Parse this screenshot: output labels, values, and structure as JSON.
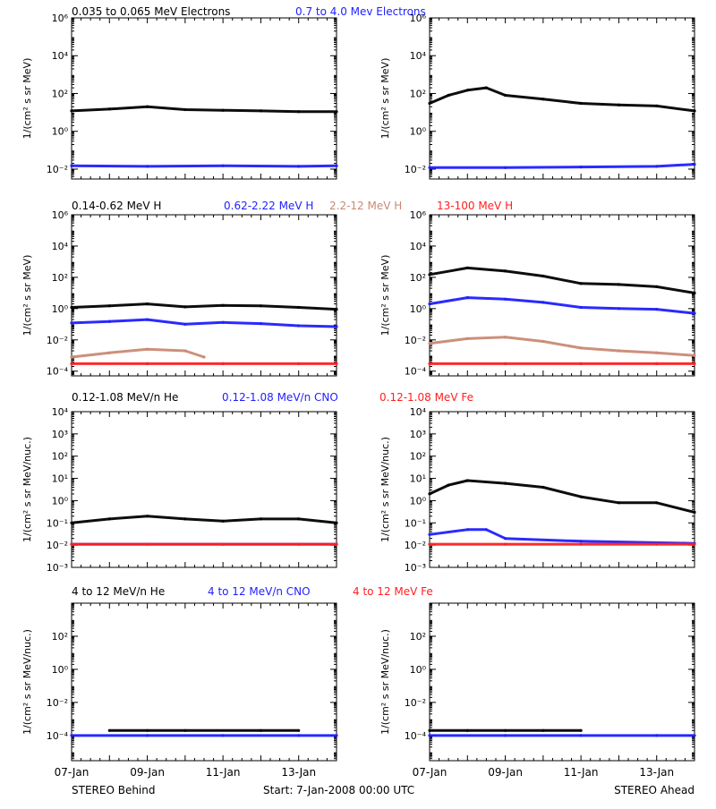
{
  "colors": {
    "black": "#000000",
    "blue": "#1f1fff",
    "tan": "#c98a74",
    "red": "#ff1f1f"
  },
  "footer": {
    "left": "STEREO Behind",
    "center": "Start:  7-Jan-2008 00:00 UTC",
    "right": "STEREO Ahead"
  },
  "x_axis": {
    "start_date": "2008-01-07",
    "end_date": "2008-01-14",
    "tick_labels": [
      "07-Jan",
      "09-Jan",
      "11-Jan",
      "13-Jan"
    ]
  },
  "chart_data": [
    {
      "type": "scatter",
      "row": "electrons",
      "legend": [
        {
          "text": "0.035 to 0.065 MeV Electrons",
          "color": "#000000"
        },
        {
          "text": "0.7 to 4.0 Mev Electrons",
          "color": "#1f1fff"
        }
      ],
      "ylabel": "1/(cm² s sr MeV)",
      "ylim": [
        0.003,
        1000000
      ],
      "yscale": "log",
      "yticks": [
        {
          "v": 1000000,
          "t": "10⁶"
        },
        {
          "v": 10000,
          "t": "10⁴"
        },
        {
          "v": 100,
          "t": "10²"
        },
        {
          "v": 1,
          "t": "10⁰"
        },
        {
          "v": 0.01,
          "t": "10⁻²"
        }
      ],
      "panels": [
        {
          "name": "STEREO Behind",
          "series": [
            {
              "name": "0.035 to 0.065 MeV Electrons",
              "color": "#000000",
              "x": [
                "2008-01-07",
                "2008-01-08",
                "2008-01-09",
                "2008-01-10",
                "2008-01-11",
                "2008-01-12",
                "2008-01-13",
                "2008-01-14"
              ],
              "y": [
                12,
                15,
                20,
                14,
                13,
                12,
                11,
                11
              ]
            },
            {
              "name": "0.7 to 4.0 Mev Electrons",
              "color": "#1f1fff",
              "x": [
                "2008-01-07",
                "2008-01-09",
                "2008-01-11",
                "2008-01-13",
                "2008-01-14"
              ],
              "y": [
                0.015,
                0.014,
                0.015,
                0.014,
                0.015
              ]
            }
          ]
        },
        {
          "name": "STEREO Ahead",
          "series": [
            {
              "name": "0.035 to 0.065 MeV Electrons",
              "color": "#000000",
              "x": [
                "2008-01-07",
                "2008-01-07 12:00",
                "2008-01-08",
                "2008-01-08 12:00",
                "2008-01-09",
                "2008-01-10",
                "2008-01-11",
                "2008-01-12",
                "2008-01-13",
                "2008-01-14"
              ],
              "y": [
                30,
                80,
                150,
                200,
                80,
                50,
                30,
                25,
                22,
                12
              ]
            },
            {
              "name": "0.7 to 4.0 Mev Electrons",
              "color": "#1f1fff",
              "x": [
                "2008-01-07",
                "2008-01-09",
                "2008-01-11",
                "2008-01-13",
                "2008-01-14"
              ],
              "y": [
                0.012,
                0.012,
                0.013,
                0.014,
                0.018
              ]
            }
          ]
        }
      ]
    },
    {
      "type": "scatter",
      "row": "protons",
      "legend": [
        {
          "text": "0.14-0.62 MeV H",
          "color": "#000000"
        },
        {
          "text": "0.62-2.22 MeV H",
          "color": "#1f1fff"
        },
        {
          "text": "2.2-12 MeV H",
          "color": "#c98a74"
        },
        {
          "text": "13-100 MeV H",
          "color": "#ff1f1f"
        }
      ],
      "ylabel": "1/(cm² s sr MeV)",
      "ylim": [
        5e-05,
        1000000
      ],
      "yscale": "log",
      "yticks": [
        {
          "v": 1000000,
          "t": "10⁶"
        },
        {
          "v": 10000,
          "t": "10⁴"
        },
        {
          "v": 100,
          "t": "10²"
        },
        {
          "v": 1,
          "t": "10⁰"
        },
        {
          "v": 0.01,
          "t": "10⁻²"
        },
        {
          "v": 0.0001,
          "t": "10⁻⁴"
        }
      ],
      "panels": [
        {
          "name": "STEREO Behind",
          "series": [
            {
              "name": "0.14-0.62 MeV H",
              "color": "#000000",
              "x": [
                "2008-01-07",
                "2008-01-08",
                "2008-01-09",
                "2008-01-10",
                "2008-01-11",
                "2008-01-12",
                "2008-01-13",
                "2008-01-14"
              ],
              "y": [
                1.2,
                1.5,
                2.0,
                1.3,
                1.6,
                1.5,
                1.2,
                0.9
              ]
            },
            {
              "name": "0.62-2.22 MeV H",
              "color": "#1f1fff",
              "x": [
                "2008-01-07",
                "2008-01-08",
                "2008-01-09",
                "2008-01-10",
                "2008-01-11",
                "2008-01-12",
                "2008-01-13",
                "2008-01-14"
              ],
              "y": [
                0.12,
                0.15,
                0.2,
                0.1,
                0.13,
                0.11,
                0.08,
                0.07
              ]
            },
            {
              "name": "2.2-12 MeV H",
              "color": "#c98a74",
              "x": [
                "2008-01-07",
                "2008-01-08",
                "2008-01-09",
                "2008-01-10",
                "2008-01-10 12:00"
              ],
              "y": [
                0.0008,
                0.0015,
                0.0025,
                0.002,
                0.0008
              ]
            },
            {
              "name": "13-100 MeV H",
              "color": "#ff1f1f",
              "x": [
                "2008-01-07",
                "2008-01-09",
                "2008-01-11",
                "2008-01-13",
                "2008-01-14"
              ],
              "y": [
                0.0003,
                0.0003,
                0.0003,
                0.0003,
                0.0003
              ]
            }
          ]
        },
        {
          "name": "STEREO Ahead",
          "series": [
            {
              "name": "0.14-0.62 MeV H",
              "color": "#000000",
              "x": [
                "2008-01-07",
                "2008-01-08",
                "2008-01-09",
                "2008-01-10",
                "2008-01-11",
                "2008-01-12",
                "2008-01-13",
                "2008-01-14"
              ],
              "y": [
                150,
                400,
                250,
                120,
                40,
                35,
                25,
                10
              ]
            },
            {
              "name": "0.62-2.22 MeV H",
              "color": "#1f1fff",
              "x": [
                "2008-01-07",
                "2008-01-08",
                "2008-01-09",
                "2008-01-10",
                "2008-01-11",
                "2008-01-12",
                "2008-01-13",
                "2008-01-14"
              ],
              "y": [
                2,
                5,
                4,
                2.5,
                1.2,
                1,
                0.9,
                0.5
              ]
            },
            {
              "name": "2.2-12 MeV H",
              "color": "#c98a74",
              "x": [
                "2008-01-07",
                "2008-01-08",
                "2008-01-09",
                "2008-01-10",
                "2008-01-11",
                "2008-01-12",
                "2008-01-13",
                "2008-01-14"
              ],
              "y": [
                0.006,
                0.012,
                0.015,
                0.008,
                0.003,
                0.002,
                0.0015,
                0.001
              ]
            },
            {
              "name": "13-100 MeV H",
              "color": "#ff1f1f",
              "x": [
                "2008-01-07",
                "2008-01-09",
                "2008-01-11",
                "2008-01-13",
                "2008-01-14"
              ],
              "y": [
                0.0003,
                0.0003,
                0.0003,
                0.0003,
                0.0003
              ]
            }
          ]
        }
      ]
    },
    {
      "type": "scatter",
      "row": "heavy-low",
      "legend": [
        {
          "text": "0.12-1.08 MeV/n He",
          "color": "#000000"
        },
        {
          "text": "0.12-1.08 MeV/n CNO",
          "color": "#1f1fff"
        },
        {
          "text": "0.12-1.08 MeV Fe",
          "color": "#ff1f1f"
        }
      ],
      "ylabel": "1/(cm² s sr MeV/nuc.)",
      "ylim": [
        0.001,
        10000
      ],
      "yscale": "log",
      "yticks": [
        {
          "v": 10000,
          "t": "10⁴"
        },
        {
          "v": 1000,
          "t": "10³"
        },
        {
          "v": 100,
          "t": "10²"
        },
        {
          "v": 10,
          "t": "10¹"
        },
        {
          "v": 1,
          "t": "10⁰"
        },
        {
          "v": 0.1,
          "t": "10⁻¹"
        },
        {
          "v": 0.01,
          "t": "10⁻²"
        },
        {
          "v": 0.001,
          "t": "10⁻³"
        }
      ],
      "panels": [
        {
          "name": "STEREO Behind",
          "series": [
            {
              "name": "0.12-1.08 MeV/n He",
              "color": "#000000",
              "x": [
                "2008-01-07",
                "2008-01-08",
                "2008-01-09",
                "2008-01-10",
                "2008-01-11",
                "2008-01-12",
                "2008-01-13",
                "2008-01-14"
              ],
              "y": [
                0.1,
                0.15,
                0.2,
                0.15,
                0.12,
                0.15,
                0.15,
                0.1
              ]
            },
            {
              "name": "0.12-1.08 MeV/n CNO",
              "color": "#1f1fff",
              "x": [
                "2008-01-07",
                "2008-01-09",
                "2008-01-11",
                "2008-01-13",
                "2008-01-14"
              ],
              "y": [
                0.011,
                0.011,
                0.011,
                0.011,
                0.011
              ]
            },
            {
              "name": "0.12-1.08 MeV Fe",
              "color": "#ff1f1f",
              "x": [
                "2008-01-07",
                "2008-01-09",
                "2008-01-11",
                "2008-01-13",
                "2008-01-14"
              ],
              "y": [
                0.011,
                0.011,
                0.011,
                0.011,
                0.011
              ]
            }
          ]
        },
        {
          "name": "STEREO Ahead",
          "series": [
            {
              "name": "0.12-1.08 MeV/n He",
              "color": "#000000",
              "x": [
                "2008-01-07",
                "2008-01-07 12:00",
                "2008-01-08",
                "2008-01-09",
                "2008-01-10",
                "2008-01-11",
                "2008-01-12",
                "2008-01-13",
                "2008-01-14"
              ],
              "y": [
                2,
                5,
                8,
                6,
                4,
                1.5,
                0.8,
                0.8,
                0.3
              ]
            },
            {
              "name": "0.12-1.08 MeV/n CNO",
              "color": "#1f1fff",
              "x": [
                "2008-01-07",
                "2008-01-08",
                "2008-01-08 12:00",
                "2008-01-09",
                "2008-01-11",
                "2008-01-14"
              ],
              "y": [
                0.03,
                0.05,
                0.05,
                0.02,
                0.015,
                0.012
              ]
            },
            {
              "name": "0.12-1.08 MeV Fe",
              "color": "#ff1f1f",
              "x": [
                "2008-01-07",
                "2008-01-09",
                "2008-01-11",
                "2008-01-13",
                "2008-01-14"
              ],
              "y": [
                0.011,
                0.011,
                0.011,
                0.011,
                0.011
              ]
            }
          ]
        }
      ]
    },
    {
      "type": "scatter",
      "row": "heavy-high",
      "legend": [
        {
          "text": "4 to 12 MeV/n He",
          "color": "#000000"
        },
        {
          "text": "4 to 12 MeV/n CNO",
          "color": "#1f1fff"
        },
        {
          "text": "4 to 12 MeV Fe",
          "color": "#ff1f1f"
        }
      ],
      "ylabel": "1/(cm² s sr MeV/nuc.)",
      "ylim": [
        3e-06,
        10000
      ],
      "yscale": "log",
      "yticks": [
        {
          "v": 100,
          "t": "10²"
        },
        {
          "v": 1,
          "t": "10⁰"
        },
        {
          "v": 0.01,
          "t": "10⁻²"
        },
        {
          "v": 0.0001,
          "t": "10⁻⁴"
        }
      ],
      "panels": [
        {
          "name": "STEREO Behind",
          "series": [
            {
              "name": "4 to 12 MeV/n He",
              "color": "#000000",
              "x": [
                "2008-01-08",
                "2008-01-09",
                "2008-01-10",
                "2008-01-12",
                "2008-01-13"
              ],
              "y": [
                0.0002,
                0.0002,
                0.0002,
                0.0002,
                0.0002
              ]
            },
            {
              "name": "4 to 12 MeV/n CNO",
              "color": "#1f1fff",
              "x": [
                "2008-01-07",
                "2008-01-09",
                "2008-01-11",
                "2008-01-13",
                "2008-01-14"
              ],
              "y": [
                0.0001,
                0.0001,
                0.0001,
                0.0001,
                0.0001
              ]
            }
          ]
        },
        {
          "name": "STEREO Ahead",
          "series": [
            {
              "name": "4 to 12 MeV/n He",
              "color": "#000000",
              "x": [
                "2008-01-07",
                "2008-01-08",
                "2008-01-09",
                "2008-01-10",
                "2008-01-11"
              ],
              "y": [
                0.0002,
                0.0002,
                0.0002,
                0.0002,
                0.0002
              ]
            },
            {
              "name": "4 to 12 MeV/n CNO",
              "color": "#1f1fff",
              "x": [
                "2008-01-07",
                "2008-01-09",
                "2008-01-11",
                "2008-01-13",
                "2008-01-14"
              ],
              "y": [
                0.0001,
                0.0001,
                0.0001,
                0.0001,
                0.0001
              ]
            }
          ]
        }
      ]
    }
  ]
}
